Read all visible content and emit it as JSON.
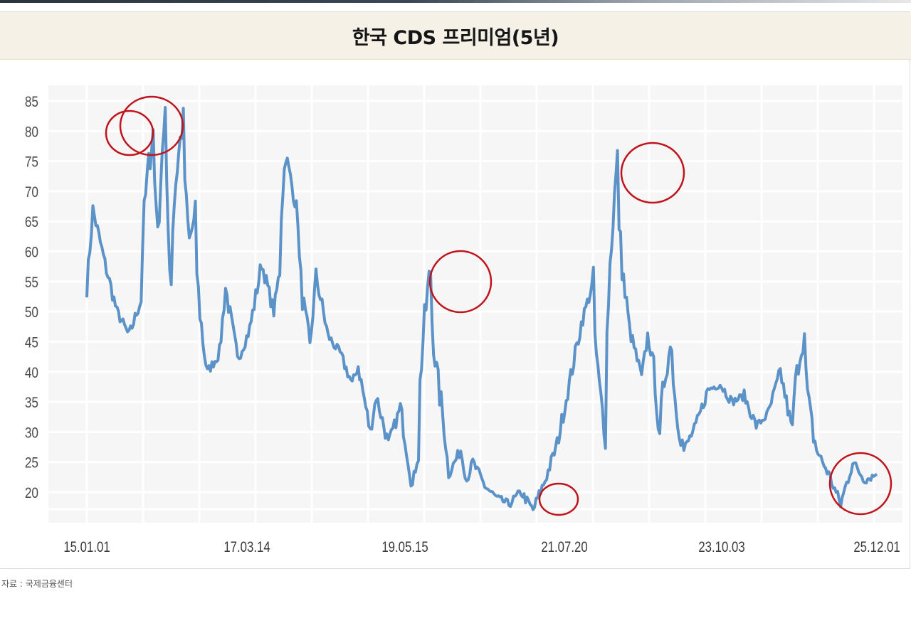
{
  "header": {
    "title": "한국 CDS 프리미엄(5년)"
  },
  "footer": {
    "source": "자료 : 국제금융센터"
  },
  "style": {
    "line_color": "#5b93c9",
    "annotation_color": "#c0141c",
    "title_band_bg": "#f5f1e7",
    "grid_color": "#ffffff",
    "plot_bg": "#f6f6f6"
  },
  "chart_data": {
    "type": "line",
    "title": "한국 CDS 프리미엄(5년)",
    "xlabel": "",
    "ylabel": "",
    "ylim": [
      15,
      85
    ],
    "yticks": [
      85,
      80,
      75,
      70,
      65,
      60,
      55,
      50,
      45,
      40,
      35,
      30,
      25,
      20
    ],
    "xtick_labels": [
      "15.01.01",
      "17.03.14",
      "19.05.15",
      "21.07.20",
      "23.10.03",
      "25.12.01"
    ],
    "grid": true,
    "legend": null,
    "source": "자료 : 국제금융센터",
    "series": [
      {
        "name": "한국 CDS 프리미엄(5년)",
        "x": [
          "2015-01",
          "2015-02",
          "2015-04",
          "2015-06",
          "2015-08",
          "2015-10",
          "2015-12",
          "2016-01",
          "2016-02",
          "2016-03",
          "2016-05",
          "2016-06",
          "2016-07",
          "2016-09",
          "2016-11",
          "2016-12",
          "2017-02",
          "2017-04",
          "2017-06",
          "2017-08",
          "2017-09",
          "2017-10",
          "2017-12",
          "2018-02",
          "2018-03",
          "2018-05",
          "2018-07",
          "2018-09",
          "2018-10",
          "2018-12",
          "2019-01",
          "2019-03",
          "2019-05",
          "2019-07",
          "2019-08",
          "2019-10",
          "2019-12",
          "2020-01",
          "2020-03",
          "2020-04",
          "2020-05",
          "2020-07",
          "2020-09",
          "2020-11",
          "2021-01",
          "2021-03",
          "2021-05",
          "2021-07",
          "2021-09",
          "2021-11",
          "2022-01",
          "2022-03",
          "2022-05",
          "2022-07",
          "2022-09",
          "2022-10",
          "2022-11",
          "2022-12",
          "2023-02",
          "2023-04",
          "2023-06",
          "2023-08",
          "2023-10",
          "2023-12",
          "2024-02",
          "2024-04",
          "2024-06",
          "2024-08",
          "2024-10",
          "2024-12",
          "2025-02",
          "2025-04",
          "2025-06",
          "2025-08",
          "2025-10",
          "2025-12"
        ],
        "values": [
          54,
          67,
          58,
          50,
          46,
          52,
          80,
          63,
          83,
          55,
          82,
          62,
          66,
          40,
          43,
          54,
          42,
          47,
          58,
          50,
          57,
          76,
          66,
          44,
          56,
          46,
          43,
          38,
          41,
          30,
          36,
          28,
          34,
          21,
          27,
          57,
          33,
          23,
          27,
          22,
          25,
          21,
          19,
          18,
          20,
          17,
          22,
          28,
          38,
          48,
          55,
          30,
          75,
          47,
          39,
          46,
          41,
          28,
          45,
          27,
          31,
          37,
          38,
          35,
          36,
          31,
          33,
          40,
          30,
          46,
          27,
          23,
          18,
          25,
          22,
          23
        ],
        "annotations": [
          {
            "label": "circle",
            "x": "2016-02",
            "y": 80
          },
          {
            "label": "circle",
            "x": "2016-05",
            "y": 81
          },
          {
            "label": "circle",
            "x": "2020-03",
            "y": 55
          },
          {
            "label": "circle",
            "x": "2021-03",
            "y": 18
          },
          {
            "label": "circle",
            "x": "2022-10",
            "y": 73
          },
          {
            "label": "circle",
            "x": "2025-09",
            "y": 21
          }
        ]
      }
    ]
  }
}
